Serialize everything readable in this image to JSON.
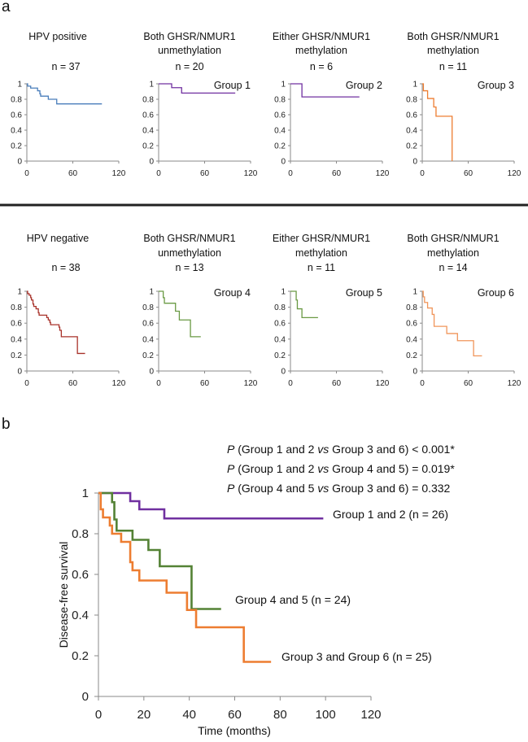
{
  "panel_labels": {
    "a": "a",
    "b": "b"
  },
  "chart_data": [
    {
      "type": "line",
      "step": true,
      "title_lines": [
        "HPV positive"
      ],
      "n_label": "n = 37",
      "group_label": "",
      "xlim": [
        0,
        120
      ],
      "ylim": [
        0,
        1
      ],
      "xticks": [
        0,
        60,
        120
      ],
      "xtick_labels": [
        "0",
        "60",
        "120"
      ],
      "yticks": [
        0,
        0.2,
        0.4,
        0.6,
        0.8,
        1
      ],
      "ytick_labels": [
        "0",
        "0.2",
        "0.4",
        "0.6",
        "0.8",
        "1"
      ],
      "series": [
        {
          "name": "HPV positive",
          "color": "#4a7ebb",
          "x": [
            0,
            1,
            5,
            14,
            17,
            18,
            28,
            39,
            98
          ],
          "y": [
            1,
            0.97,
            0.945,
            0.91,
            0.87,
            0.84,
            0.8,
            0.74,
            0.74
          ]
        }
      ]
    },
    {
      "type": "line",
      "step": true,
      "title_lines": [
        "Both GHSR/NMUR1",
        "unmethylation"
      ],
      "n_label": "n = 20",
      "group_label": "Group 1",
      "xlim": [
        0,
        120
      ],
      "ylim": [
        0,
        1
      ],
      "xticks": [
        0,
        60,
        120
      ],
      "xtick_labels": [
        "0",
        "60",
        "120"
      ],
      "yticks": [
        0,
        0.2,
        0.4,
        0.6,
        0.8,
        1
      ],
      "ytick_labels": [
        "0",
        "0.2",
        "0.4",
        "0.6",
        "0.8",
        "1"
      ],
      "series": [
        {
          "name": "Group 1",
          "color": "#7030a0",
          "x": [
            0,
            17,
            30,
            100
          ],
          "y": [
            1,
            0.95,
            0.88,
            0.88
          ]
        }
      ]
    },
    {
      "type": "line",
      "step": true,
      "title_lines": [
        "Either GHSR/NMUR1",
        "methylation"
      ],
      "n_label": "n = 6",
      "group_label": "Group 2",
      "xlim": [
        0,
        120
      ],
      "ylim": [
        0,
        1
      ],
      "xticks": [
        0,
        60,
        120
      ],
      "xtick_labels": [
        "0",
        "60",
        "120"
      ],
      "yticks": [
        0,
        0.2,
        0.4,
        0.6,
        0.8,
        1
      ],
      "ytick_labels": [
        "0",
        "0.2",
        "0.4",
        "0.6",
        "0.8",
        "1"
      ],
      "series": [
        {
          "name": "Group 2",
          "color": "#7030a0",
          "x": [
            0,
            15,
            90
          ],
          "y": [
            1,
            0.83,
            0.83
          ]
        }
      ]
    },
    {
      "type": "line",
      "step": true,
      "title_lines": [
        "Both GHSR/NMUR1",
        "methylation"
      ],
      "n_label": "n = 11",
      "group_label": "Group 3",
      "xlim": [
        0,
        120
      ],
      "ylim": [
        0,
        1
      ],
      "xticks": [
        0,
        60,
        120
      ],
      "xtick_labels": [
        "0",
        "60",
        "120"
      ],
      "yticks": [
        0,
        0.2,
        0.4,
        0.6,
        0.8,
        1
      ],
      "ytick_labels": [
        "0",
        "0.2",
        "0.4",
        "0.6",
        "0.8",
        "1"
      ],
      "series": [
        {
          "name": "Group 3",
          "color": "#ed7d31",
          "x": [
            0,
            1.5,
            7,
            15,
            18,
            39
          ],
          "y": [
            1,
            0.91,
            0.81,
            0.7,
            0.58,
            0
          ]
        }
      ]
    },
    {
      "type": "line",
      "step": true,
      "title_lines": [
        "HPV negative"
      ],
      "n_label": "n = 38",
      "group_label": "",
      "xlim": [
        0,
        120
      ],
      "ylim": [
        0,
        1
      ],
      "xticks": [
        0,
        60,
        120
      ],
      "xtick_labels": [
        "0",
        "60",
        "120"
      ],
      "yticks": [
        0,
        0.2,
        0.4,
        0.6,
        0.8,
        1
      ],
      "ytick_labels": [
        "0",
        "0.2",
        "0.4",
        "0.6",
        "0.8",
        "1"
      ],
      "series": [
        {
          "name": "HPV negative",
          "color": "#a8322a",
          "x": [
            0,
            1,
            3,
            5,
            6,
            8,
            9,
            12,
            15,
            16,
            26,
            28,
            30,
            31,
            42,
            43,
            45,
            66,
            76
          ],
          "y": [
            1,
            0.97,
            0.95,
            0.92,
            0.89,
            0.84,
            0.81,
            0.78,
            0.73,
            0.7,
            0.67,
            0.64,
            0.61,
            0.58,
            0.55,
            0.51,
            0.43,
            0.22,
            0.22
          ]
        }
      ]
    },
    {
      "type": "line",
      "step": true,
      "title_lines": [
        "Both GHSR/NMUR1",
        "unmethylation"
      ],
      "n_label": "n = 13",
      "group_label": "Group 4",
      "xlim": [
        0,
        120
      ],
      "ylim": [
        0,
        1
      ],
      "xticks": [
        0,
        60,
        120
      ],
      "xtick_labels": [
        "0",
        "60",
        "120"
      ],
      "yticks": [
        0,
        0.2,
        0.4,
        0.6,
        0.8,
        1
      ],
      "ytick_labels": [
        "0",
        "0.2",
        "0.4",
        "0.6",
        "0.8",
        "1"
      ],
      "series": [
        {
          "name": "Group 4",
          "color": "#6a9a44",
          "x": [
            0,
            6,
            7.5,
            22,
            27,
            41.5,
            55
          ],
          "y": [
            1,
            0.92,
            0.85,
            0.75,
            0.64,
            0.43,
            0.43
          ]
        }
      ]
    },
    {
      "type": "line",
      "step": true,
      "title_lines": [
        "Either GHSR/NMUR1",
        "methylation"
      ],
      "n_label": "n = 11",
      "group_label": "Group 5",
      "xlim": [
        0,
        120
      ],
      "ylim": [
        0,
        1
      ],
      "xticks": [
        0,
        60,
        120
      ],
      "xtick_labels": [
        "0",
        "60",
        "120"
      ],
      "yticks": [
        0,
        0.2,
        0.4,
        0.6,
        0.8,
        1
      ],
      "ytick_labels": [
        "0",
        "0.2",
        "0.4",
        "0.6",
        "0.8",
        "1"
      ],
      "series": [
        {
          "name": "Group 5",
          "color": "#6a9a44",
          "x": [
            0,
            7.5,
            9,
            15,
            36
          ],
          "y": [
            1,
            0.89,
            0.78,
            0.67,
            0.67
          ]
        }
      ]
    },
    {
      "type": "line",
      "step": true,
      "title_lines": [
        "Both GHSR/NMUR1",
        "methylation"
      ],
      "n_label": "n = 14",
      "group_label": "Group 6",
      "xlim": [
        0,
        120
      ],
      "ylim": [
        0,
        1
      ],
      "xticks": [
        0,
        60,
        120
      ],
      "xtick_labels": [
        "0",
        "60",
        "120"
      ],
      "yticks": [
        0,
        0.2,
        0.4,
        0.6,
        0.8,
        1
      ],
      "ytick_labels": [
        "0",
        "0.2",
        "0.4",
        "0.6",
        "0.8",
        "1"
      ],
      "series": [
        {
          "name": "Group 6",
          "color": "#f0955a",
          "x": [
            0,
            1.3,
            3,
            7,
            13,
            15.5,
            32,
            46,
            67,
            78
          ],
          "y": [
            1,
            0.93,
            0.86,
            0.79,
            0.71,
            0.56,
            0.47,
            0.38,
            0.19,
            0.19
          ]
        }
      ]
    },
    {
      "type": "line",
      "step": true,
      "xlabel": "Time (months)",
      "ylabel": "Disease-free survival",
      "xlim": [
        0,
        120
      ],
      "ylim": [
        0,
        1
      ],
      "xticks": [
        0,
        20,
        40,
        60,
        80,
        100,
        120
      ],
      "xtick_labels": [
        "0",
        "20",
        "40",
        "60",
        "80",
        "100",
        "120"
      ],
      "yticks": [
        0,
        0.2,
        0.4,
        0.6,
        0.8,
        1
      ],
      "ytick_labels": [
        "0",
        "0.2",
        "0.4",
        "0.6",
        "0.8",
        "1"
      ],
      "p_values": [
        [
          "P",
          " (Group 1 and 2 ",
          "vs",
          " Group 3 and 6) < 0.001*"
        ],
        [
          "P",
          " (Group 1 and 2 ",
          "vs",
          " Group 4 and 5) = 0.019*"
        ],
        [
          "P",
          " (Group 4 and 5 ",
          "vs",
          " Group 3 and 6) = 0.332"
        ]
      ],
      "series": [
        {
          "name": "Group 1 and 2 (n = 26)",
          "color": "#7030a0",
          "x": [
            0,
            14,
            18,
            29,
            99
          ],
          "y": [
            1,
            0.96,
            0.92,
            0.875,
            0.875
          ]
        },
        {
          "name": "Group 4 and 5 (n = 24)",
          "color": "#548235",
          "x": [
            0,
            6,
            7,
            8,
            15,
            22,
            27,
            41,
            54
          ],
          "y": [
            1,
            0.955,
            0.87,
            0.815,
            0.77,
            0.72,
            0.64,
            0.43,
            0.43
          ]
        },
        {
          "name": "Group 3 and Group 6 (n = 25)",
          "color": "#ed7d31",
          "x": [
            0,
            1,
            2,
            5,
            6,
            10,
            14,
            15,
            18,
            30,
            39,
            43,
            64,
            76
          ],
          "y": [
            1,
            0.92,
            0.88,
            0.84,
            0.8,
            0.76,
            0.66,
            0.62,
            0.57,
            0.51,
            0.425,
            0.34,
            0.17,
            0.17
          ]
        }
      ]
    }
  ]
}
